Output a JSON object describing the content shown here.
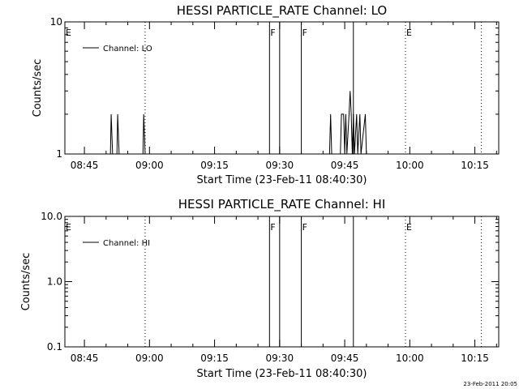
{
  "chart_data": [
    {
      "type": "line",
      "title": "HESSI PARTICLE_RATE Channel: LO",
      "xlabel": "Start Time (23-Feb-11 08:40:30)",
      "ylabel": "Counts/sec",
      "y_scale": "log",
      "ylim": [
        1,
        10
      ],
      "y_ticks": [
        {
          "value": 1,
          "label": "1"
        },
        {
          "value": 10,
          "label": "10"
        }
      ],
      "xlim": [
        "08:40:30",
        "10:20:30"
      ],
      "x_ticks": [
        "08:45",
        "09:00",
        "09:15",
        "09:30",
        "09:45",
        "10:00",
        "10:15"
      ],
      "legend": {
        "position": "top-left",
        "entries": [
          "Channel: LO"
        ]
      },
      "series": [
        {
          "name": "Channel: LO",
          "points": [
            [
              "08:40:30",
              1
            ],
            [
              "08:51:00",
              1
            ],
            [
              "08:51:10",
              2
            ],
            [
              "08:51:30",
              1
            ],
            [
              "08:52:30",
              1
            ],
            [
              "08:52:40",
              2
            ],
            [
              "08:53:00",
              1
            ],
            [
              "08:58:30",
              1
            ],
            [
              "08:58:40",
              2
            ],
            [
              "08:59:00",
              1
            ],
            [
              "09:41:30",
              1
            ],
            [
              "09:41:45",
              2
            ],
            [
              "09:42:00",
              1
            ],
            [
              "09:44:00",
              1
            ],
            [
              "09:44:15",
              2
            ],
            [
              "09:44:45",
              2
            ],
            [
              "09:45:00",
              1
            ],
            [
              "09:45:15",
              2
            ],
            [
              "09:45:30",
              1
            ],
            [
              "09:46:00",
              2
            ],
            [
              "09:46:15",
              3
            ],
            [
              "09:46:30",
              2
            ],
            [
              "09:46:45",
              1
            ],
            [
              "09:47:00",
              2
            ],
            [
              "09:47:15",
              1
            ],
            [
              "09:47:45",
              2
            ],
            [
              "09:48:00",
              1
            ],
            [
              "09:48:30",
              2
            ],
            [
              "09:48:45",
              1
            ],
            [
              "09:49:45",
              2
            ],
            [
              "09:50:00",
              1
            ],
            [
              "10:20:30",
              1
            ]
          ]
        }
      ],
      "flags": [
        {
          "label": "E",
          "time": "08:40:30",
          "line": "none"
        },
        {
          "label": "F",
          "time": "09:27:40",
          "line": "solid"
        },
        {
          "label": "",
          "time": "09:30:00",
          "line": "solid"
        },
        {
          "label": "F",
          "time": "09:35:00",
          "line": "solid"
        },
        {
          "label": "",
          "time": "09:47:00",
          "line": "solid"
        },
        {
          "label": "E",
          "time": "09:59:00",
          "line": "dotted"
        },
        {
          "label": "",
          "time": "08:59:00",
          "line": "dotted"
        },
        {
          "label": "",
          "time": "10:16:30",
          "line": "dotted"
        }
      ]
    },
    {
      "type": "line",
      "title": "HESSI PARTICLE_RATE Channel: HI",
      "xlabel": "Start Time (23-Feb-11 08:40:30)",
      "ylabel": "Counts/sec",
      "y_scale": "log",
      "ylim": [
        0.1,
        10
      ],
      "y_ticks": [
        {
          "value": 0.1,
          "label": "0.1"
        },
        {
          "value": 1,
          "label": "1.0"
        },
        {
          "value": 10,
          "label": "10.0"
        }
      ],
      "xlim": [
        "08:40:30",
        "10:20:30"
      ],
      "x_ticks": [
        "08:45",
        "09:00",
        "09:15",
        "09:30",
        "09:45",
        "10:00",
        "10:15"
      ],
      "legend": {
        "position": "top-left",
        "entries": [
          "Channel: HI"
        ]
      },
      "series": [
        {
          "name": "Channel: HI",
          "points": []
        }
      ],
      "flags": [
        {
          "label": "E",
          "time": "08:40:30",
          "line": "none"
        },
        {
          "label": "F",
          "time": "09:27:40",
          "line": "solid"
        },
        {
          "label": "",
          "time": "09:30:00",
          "line": "solid"
        },
        {
          "label": "F",
          "time": "09:35:00",
          "line": "solid"
        },
        {
          "label": "",
          "time": "09:47:00",
          "line": "solid"
        },
        {
          "label": "E",
          "time": "09:59:00",
          "line": "dotted"
        },
        {
          "label": "",
          "time": "08:59:00",
          "line": "dotted"
        },
        {
          "label": "",
          "time": "10:16:30",
          "line": "dotted"
        }
      ]
    }
  ],
  "footer": {
    "timestamp": "23-Feb-2011 20:05"
  }
}
